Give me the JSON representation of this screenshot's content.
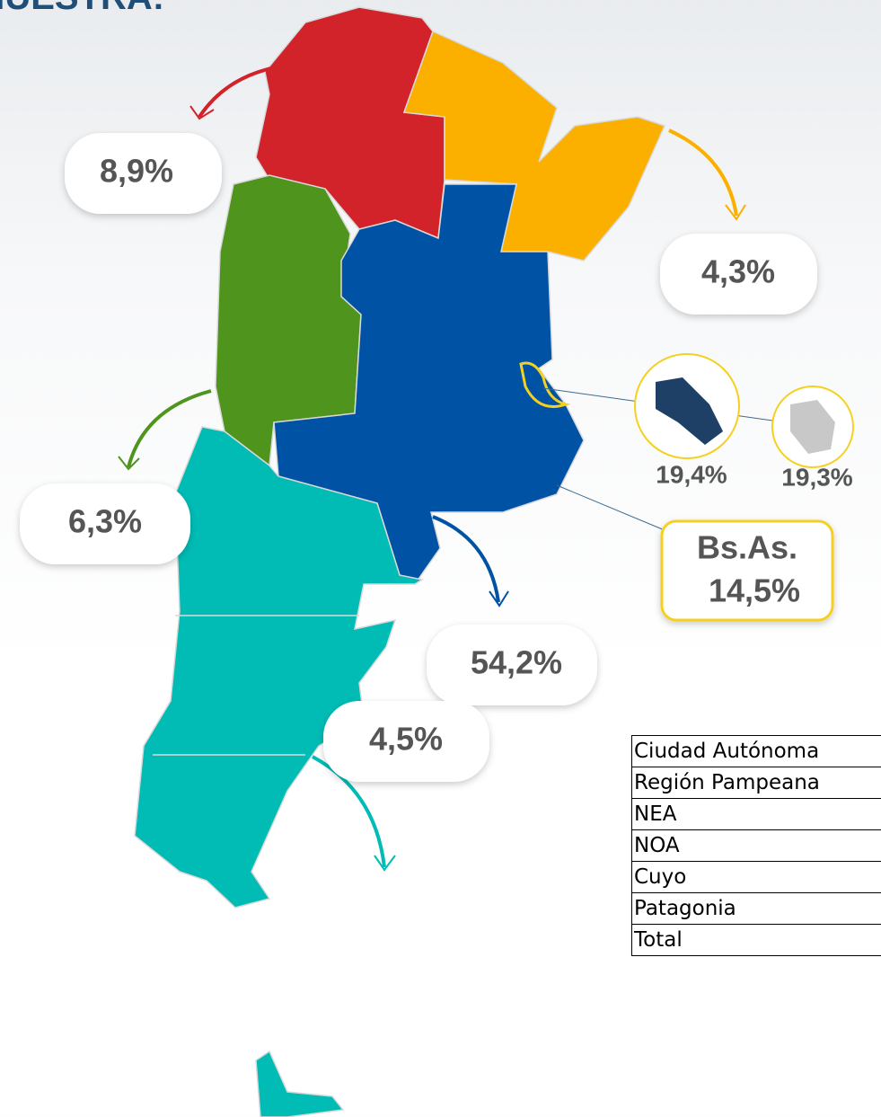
{
  "title": "MUESTRA:",
  "callouts": {
    "noa": "8,9%",
    "nea": "4,3%",
    "cuyo": "6,3%",
    "pampeana": "54,2%",
    "patagonia": "4,5%",
    "bsas": {
      "name": "Bs.As.",
      "value": "14,5%"
    },
    "inset_gba": "19,4%",
    "inset_caba": "19,3%"
  },
  "table": {
    "rows": [
      [
        "Ciudad Autónoma"
      ],
      [
        "Región Pampeana"
      ],
      [
        "NEA"
      ],
      [
        "NOA"
      ],
      [
        "Cuyo"
      ],
      [
        "Patagonia"
      ],
      [
        "Total"
      ]
    ]
  }
}
